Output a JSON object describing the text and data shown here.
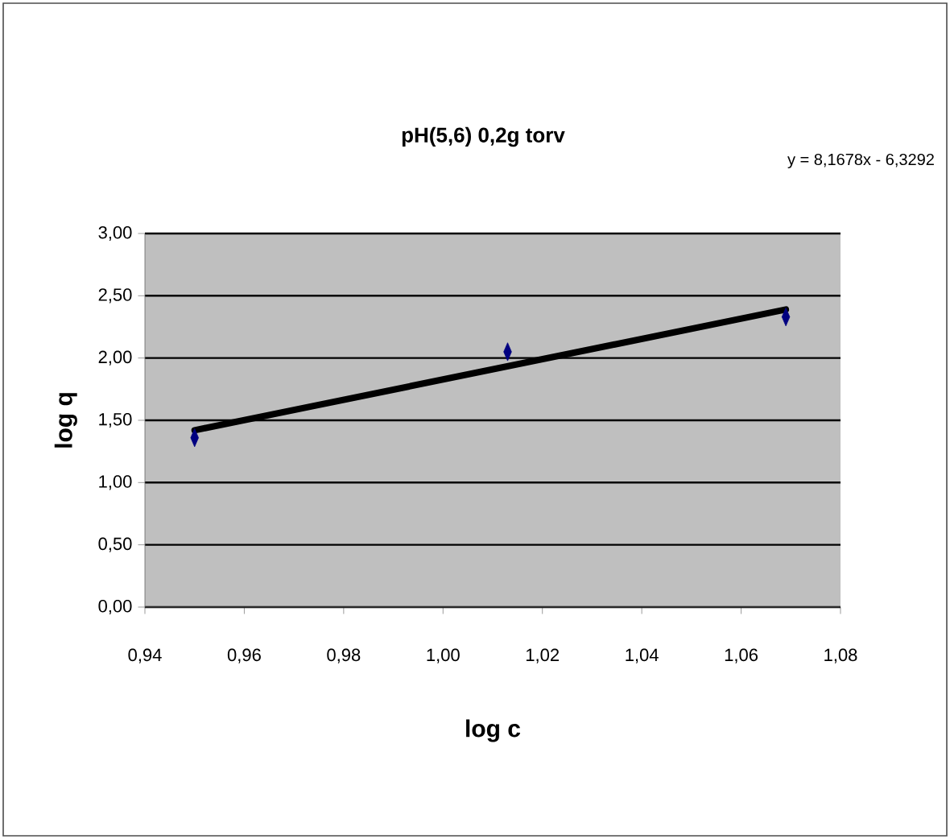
{
  "chart_data": {
    "type": "scatter",
    "title": "pH(5,6) 0,2g torv",
    "xlabel": "log c",
    "ylabel": "log q",
    "annotations": [
      "y = 8,1678x - 6,3292"
    ],
    "series": [
      {
        "color": "#000080",
        "marker": "diamond",
        "x": [
          0.95,
          1.013,
          1.069
        ],
        "values": [
          1.36,
          2.05,
          2.33
        ]
      },
      {
        "type": "line",
        "color": "#000000",
        "marker": "none",
        "x": [
          0.95,
          1.069
        ],
        "values": [
          1.42,
          2.39
        ]
      }
    ],
    "xlim": [
      0.94,
      1.08
    ],
    "xticks": [
      {
        "value": 0.94,
        "label": "0,94"
      },
      {
        "value": 0.96,
        "label": "0,96"
      },
      {
        "value": 0.98,
        "label": "0,98"
      },
      {
        "value": 1.0,
        "label": "1,00"
      },
      {
        "value": 1.02,
        "label": "1,02"
      },
      {
        "value": 1.04,
        "label": "1,04"
      },
      {
        "value": 1.06,
        "label": "1,06"
      },
      {
        "value": 1.08,
        "label": "1,08"
      }
    ],
    "ylim": [
      0,
      3
    ],
    "yticks": [
      {
        "value": 0,
        "label": "0,00"
      },
      {
        "value": 0.5,
        "label": "0,50"
      },
      {
        "value": 1.0,
        "label": "1,00"
      },
      {
        "value": 1.5,
        "label": "1,50"
      },
      {
        "value": 2.0,
        "label": "2,00"
      },
      {
        "value": 2.5,
        "label": "2,50"
      },
      {
        "value": 3.0,
        "label": "3,00"
      }
    ],
    "grid": "y"
  }
}
